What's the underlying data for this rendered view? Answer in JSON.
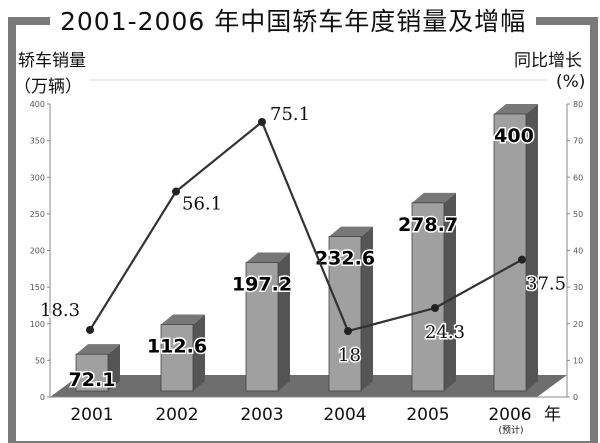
{
  "chart_data": {
    "type": "bar+line",
    "title": "2001-2006 年中国轿车年度销量及增幅",
    "ylabel_left": [
      "轿车销量",
      "（万辆）"
    ],
    "ylabel_right": [
      "同比增长",
      "(%)"
    ],
    "categories": [
      "2001",
      "2002",
      "2003",
      "2004",
      "2005",
      "2006"
    ],
    "x_unit": "年",
    "x_note": "(预计)",
    "bar_series": {
      "values": [
        72.1,
        112.6,
        197.2,
        232.6,
        278.7,
        400
      ],
      "labels": [
        "72.1",
        "112.6",
        "197.2",
        "232.6",
        "278.7",
        "400"
      ],
      "color": "#a0a0a0"
    },
    "line_series": {
      "values": [
        18.3,
        56.1,
        75.1,
        18,
        24.3,
        37.5
      ],
      "labels": [
        "18.3",
        "56.1",
        "75.1",
        "18",
        "24.3",
        "37.5"
      ],
      "color": "#333333"
    },
    "ylim_left": [
      0,
      400
    ],
    "yticks_left": [
      "0",
      "50",
      "100",
      "150",
      "200",
      "250",
      "300",
      "350",
      "400"
    ],
    "ylim_right": [
      0,
      80
    ],
    "yticks_right": [
      "0",
      "10",
      "20",
      "30",
      "40",
      "50",
      "60",
      "70",
      "80"
    ],
    "grid": false
  }
}
